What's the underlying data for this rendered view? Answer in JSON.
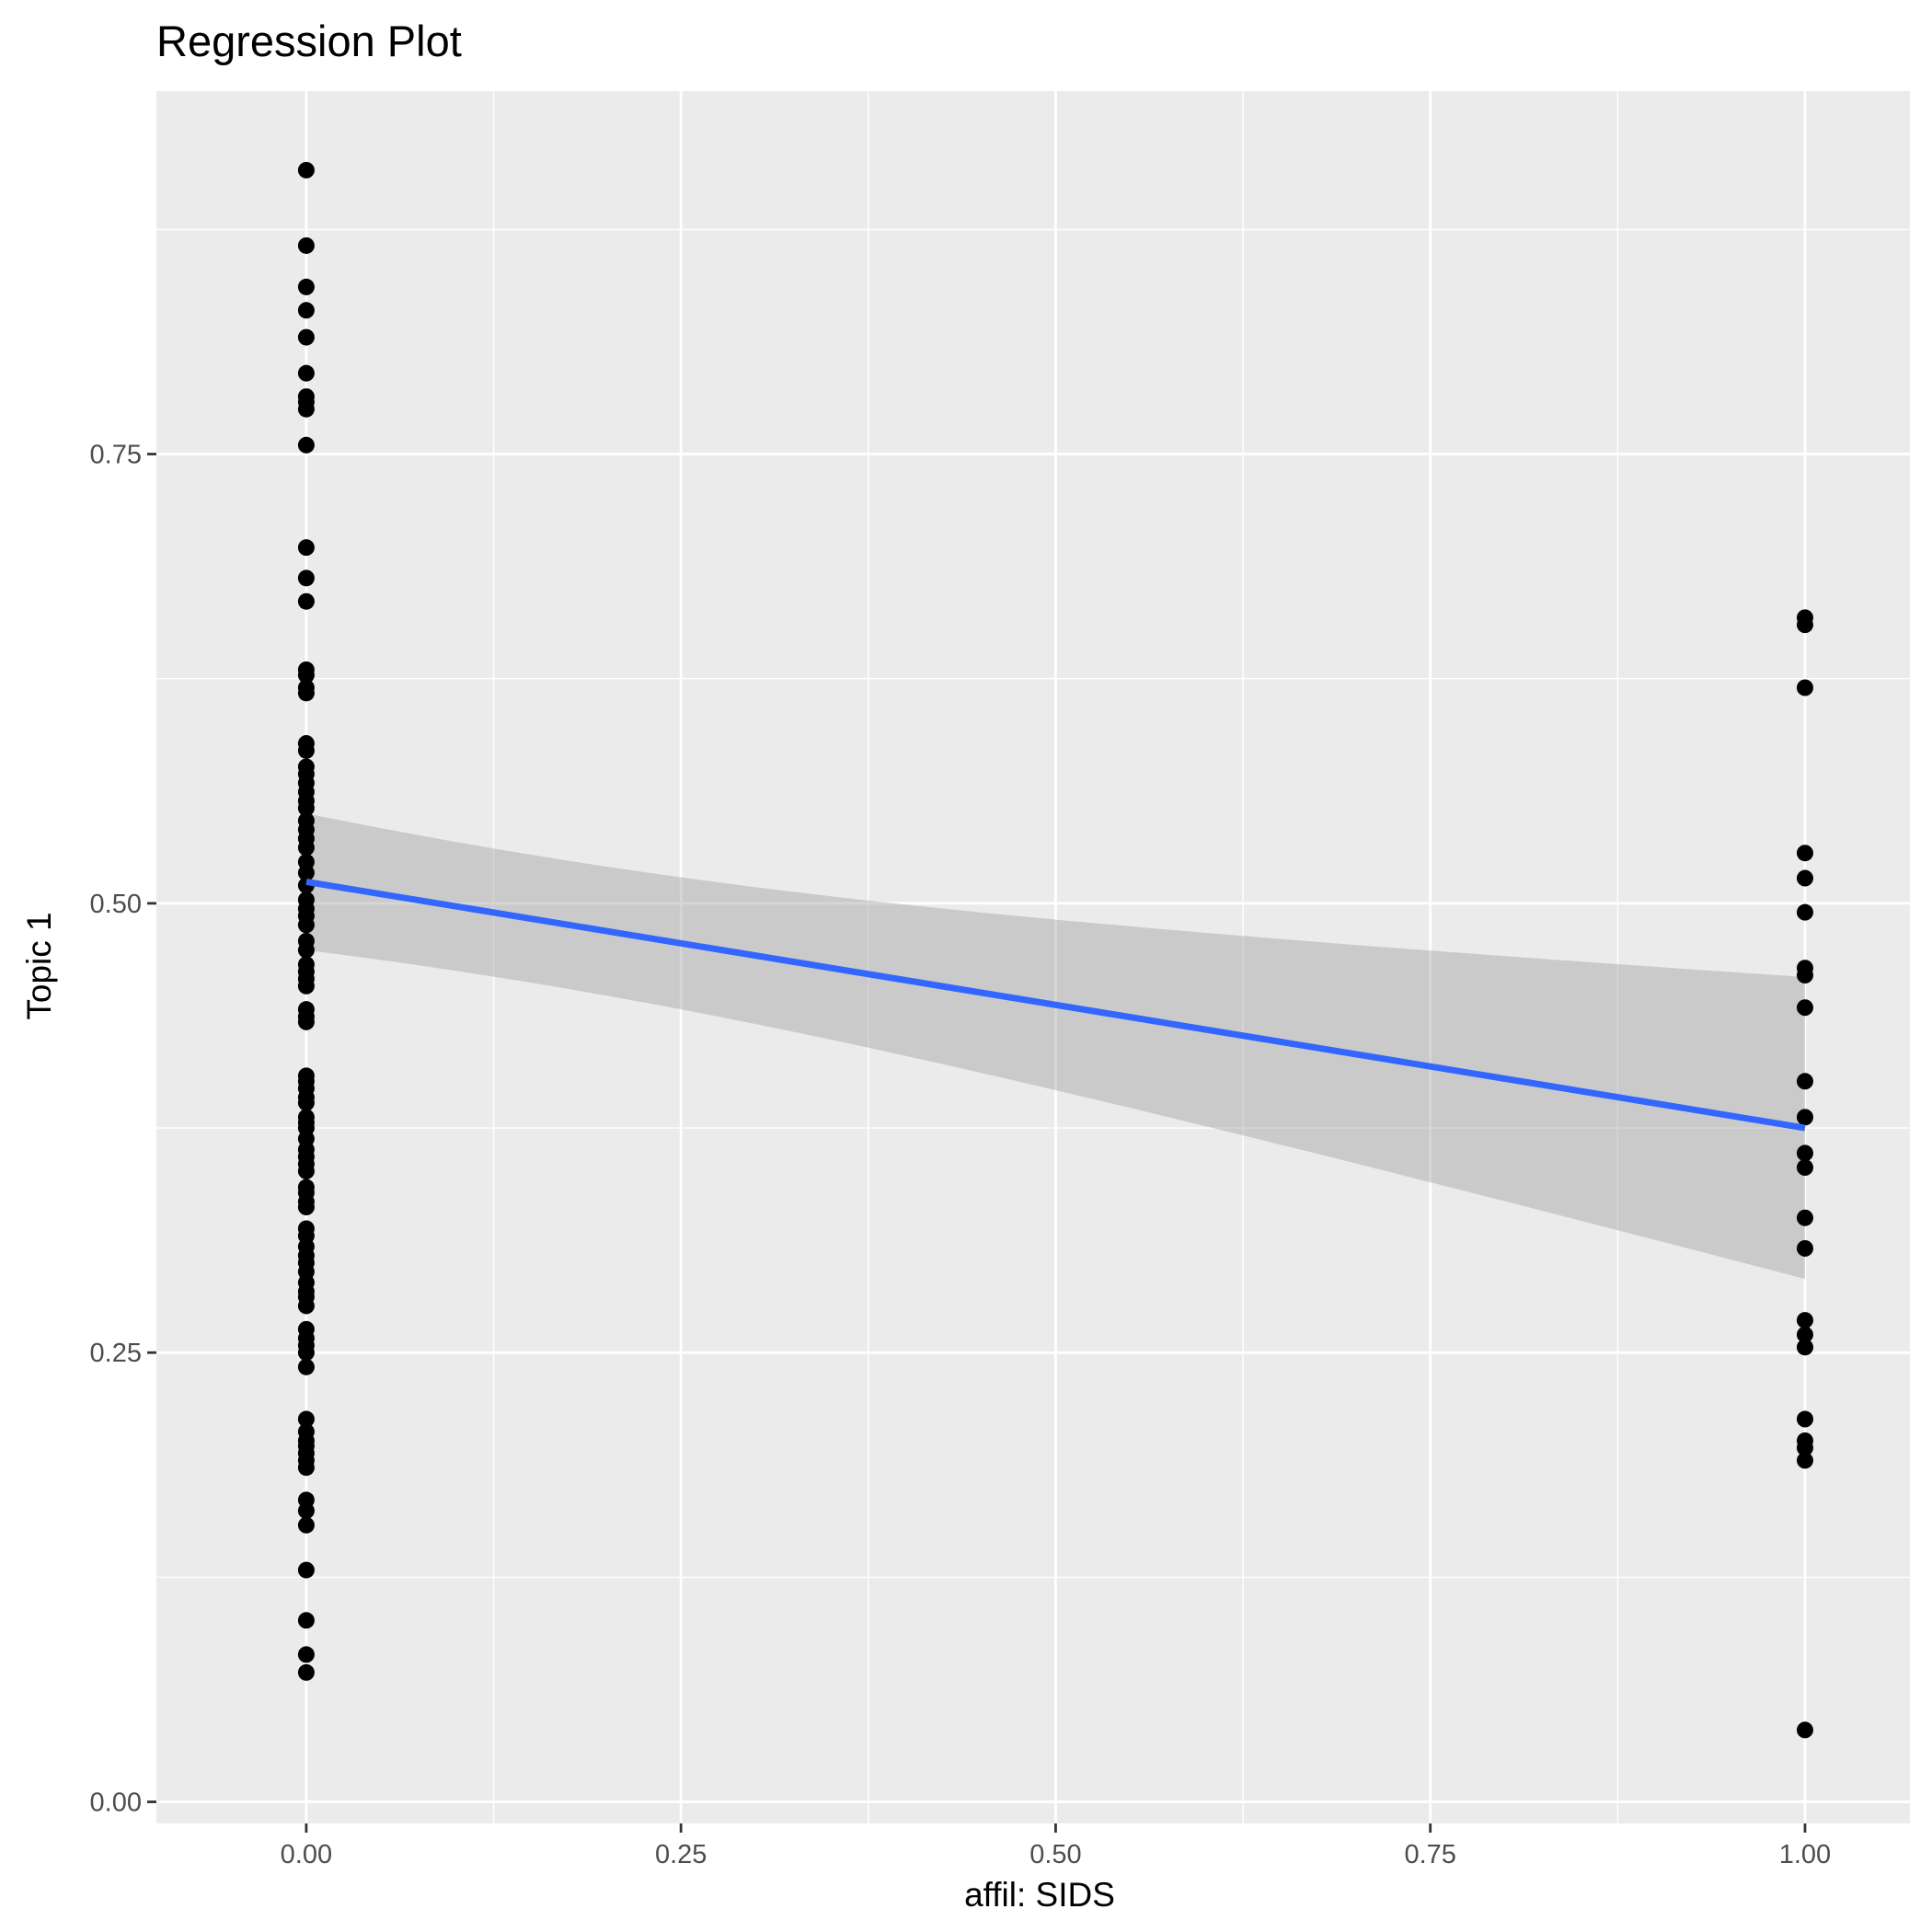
{
  "chart_data": {
    "type": "scatter",
    "title": "Regression Plot",
    "xlabel": "affil: SIDS",
    "ylabel": "Topic 1",
    "xlim": [
      -0.1,
      1.07
    ],
    "ylim": [
      -0.012,
      0.952
    ],
    "x_ticks": [
      0,
      0.25,
      0.5,
      0.75,
      1
    ],
    "x_tick_labels": [
      "0.00",
      "0.25",
      "0.50",
      "0.75",
      "1.00"
    ],
    "y_ticks": [
      0,
      0.25,
      0.5,
      0.75
    ],
    "y_tick_labels": [
      "0.00",
      "0.25",
      "0.50",
      "0.75"
    ],
    "grid": true,
    "series": [
      {
        "x": 0,
        "y": [
          0.908,
          0.866,
          0.843,
          0.83,
          0.815,
          0.795,
          0.782,
          0.779,
          0.775,
          0.755,
          0.698,
          0.681,
          0.668,
          0.63,
          0.627,
          0.62,
          0.617,
          0.589,
          0.585,
          0.576,
          0.572,
          0.567,
          0.562,
          0.557,
          0.553,
          0.546,
          0.541,
          0.536,
          0.531,
          0.523,
          0.517,
          0.51,
          0.502,
          0.497,
          0.493,
          0.488,
          0.479,
          0.474,
          0.466,
          0.462,
          0.458,
          0.454,
          0.441,
          0.437,
          0.434,
          0.404,
          0.401,
          0.397,
          0.392,
          0.389,
          0.381,
          0.378,
          0.375,
          0.369,
          0.363,
          0.359,
          0.355,
          0.351,
          0.342,
          0.339,
          0.334,
          0.331,
          0.319,
          0.315,
          0.309,
          0.304,
          0.3,
          0.295,
          0.289,
          0.284,
          0.281,
          0.276,
          0.263,
          0.258,
          0.254,
          0.25,
          0.242,
          0.213,
          0.206,
          0.201,
          0.198,
          0.194,
          0.19,
          0.186,
          0.168,
          0.162,
          0.154,
          0.129,
          0.101,
          0.082,
          0.072
        ]
      },
      {
        "x": 1,
        "y": [
          0.659,
          0.655,
          0.62,
          0.528,
          0.514,
          0.495,
          0.464,
          0.46,
          0.442,
          0.401,
          0.381,
          0.361,
          0.353,
          0.325,
          0.308,
          0.268,
          0.26,
          0.253,
          0.213,
          0.201,
          0.197,
          0.19,
          0.04
        ]
      }
    ],
    "regression": {
      "x": [
        0,
        1
      ],
      "y": [
        0.512,
        0.375
      ],
      "ci_lower": [
        0.475,
        0.291
      ],
      "ci_upper": [
        0.551,
        0.459
      ],
      "color": "#3366ff",
      "band_color": "#999999"
    },
    "colors": {
      "panel": "#ebebeb",
      "grid": "#ffffff",
      "points": "#000000"
    }
  }
}
